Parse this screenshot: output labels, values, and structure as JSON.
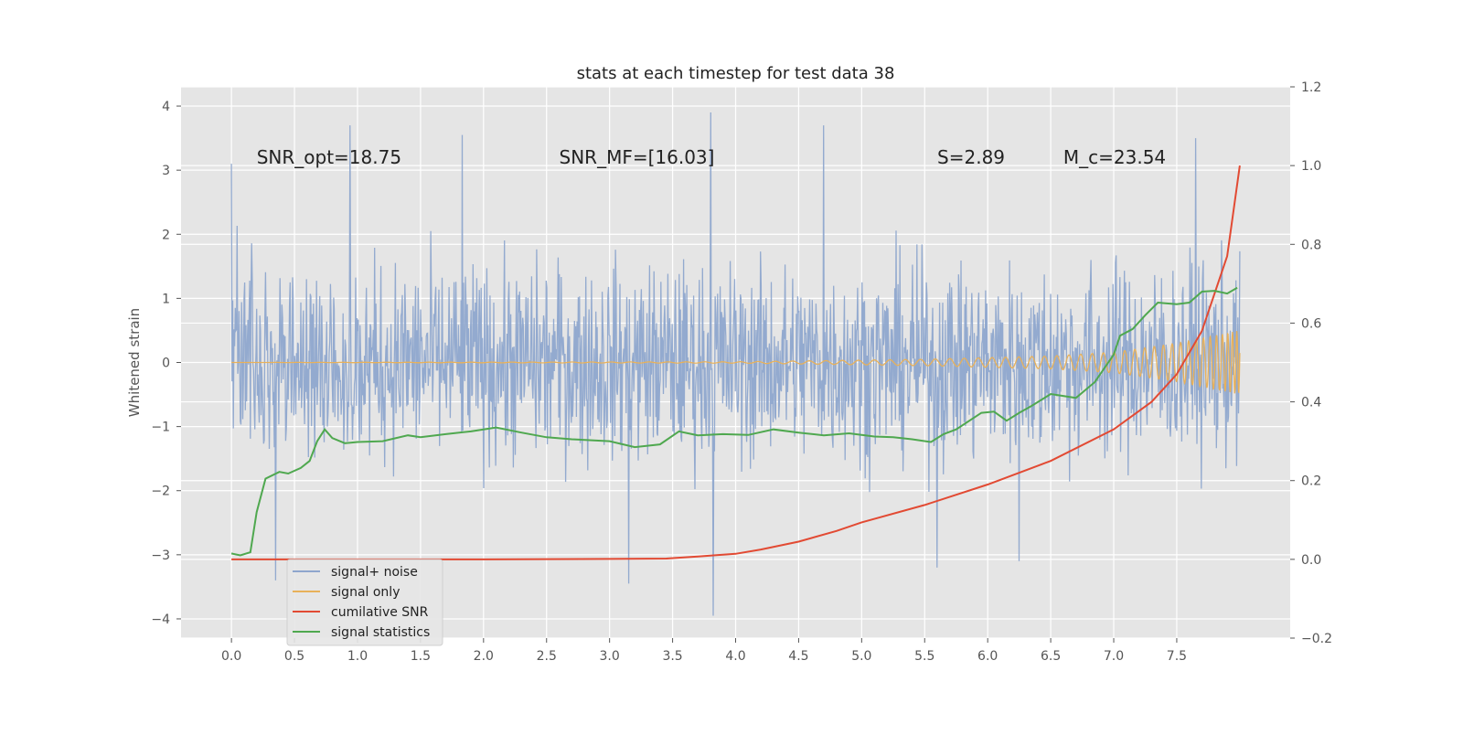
{
  "chart_data": {
    "type": "line",
    "title": "stats at each timestep for test data 38",
    "ylabel": "Whitened strain",
    "xlabel": "",
    "xlim": [
      -0.4,
      8.4
    ],
    "ylim": [
      -4.3,
      4.3
    ],
    "y2lim": [
      -0.2,
      1.2
    ],
    "grid": true,
    "legend_position": "lower-left",
    "x_ticks": [
      "0.0",
      "0.5",
      "1.0",
      "1.5",
      "2.0",
      "2.5",
      "3.0",
      "3.5",
      "4.0",
      "4.5",
      "5.0",
      "5.5",
      "6.0",
      "6.5",
      "7.0",
      "7.5"
    ],
    "y_ticks": [
      "4",
      "3",
      "2",
      "1",
      "0",
      "−1",
      "−2",
      "−3",
      "−4"
    ],
    "y2_ticks": [
      "1.2",
      "1.0",
      "0.8",
      "0.6",
      "0.4",
      "0.2",
      "0.0",
      "−0.2"
    ],
    "annotations": [
      {
        "text": "SNR_opt=18.75",
        "x": 0.2,
        "y": 3.1
      },
      {
        "text": "SNR_MF=[16.03]",
        "x": 2.6,
        "y": 3.1
      },
      {
        "text": "S=2.89",
        "x": 5.6,
        "y": 3.1
      },
      {
        "text": "M_c=23.54",
        "x": 6.6,
        "y": 3.1
      }
    ],
    "series": [
      {
        "name": "signal+ noise",
        "axis": "left",
        "color": "#8ea6cd",
        "x_range": [
          0.0,
          8.0
        ],
        "sample_count": 1600,
        "typical_min": -1.5,
        "typical_max": 1.5,
        "extremes": [
          {
            "x": 0.0,
            "y": 3.1
          },
          {
            "x": 0.35,
            "y": -3.4
          },
          {
            "x": 0.94,
            "y": 3.7
          },
          {
            "x": 1.83,
            "y": 3.55
          },
          {
            "x": 3.15,
            "y": -3.45
          },
          {
            "x": 3.8,
            "y": 3.9
          },
          {
            "x": 3.82,
            "y": -3.95
          },
          {
            "x": 4.7,
            "y": 3.7
          },
          {
            "x": 5.6,
            "y": -3.2
          },
          {
            "x": 6.25,
            "y": -3.1
          },
          {
            "x": 7.65,
            "y": 3.5
          }
        ]
      },
      {
        "name": "signal only",
        "axis": "left",
        "color": "#e8b15a",
        "x_range": [
          0.0,
          8.0
        ],
        "amplitude_envelope": [
          {
            "x": 0.0,
            "y": 0.0
          },
          {
            "x": 4.0,
            "y": 0.01
          },
          {
            "x": 5.5,
            "y": 0.05
          },
          {
            "x": 6.5,
            "y": 0.1
          },
          {
            "x": 7.0,
            "y": 0.16
          },
          {
            "x": 7.5,
            "y": 0.3
          },
          {
            "x": 8.0,
            "y": 0.5
          }
        ]
      },
      {
        "name": "cumilative SNR",
        "axis": "right",
        "color": "#e24a33",
        "x": [
          0.0,
          1.0,
          2.0,
          3.0,
          3.45,
          3.7,
          4.0,
          4.2,
          4.5,
          4.8,
          5.0,
          5.5,
          6.0,
          6.5,
          7.0,
          7.3,
          7.5,
          7.7,
          7.9,
          8.0
        ],
        "values": [
          0.0,
          0.0,
          0.0,
          0.001,
          0.002,
          0.007,
          0.014,
          0.025,
          0.045,
          0.072,
          0.094,
          0.138,
          0.19,
          0.25,
          0.33,
          0.4,
          0.47,
          0.58,
          0.77,
          1.0
        ]
      },
      {
        "name": "signal statistics",
        "axis": "right",
        "color": "#4fa84f",
        "x": [
          0.0,
          0.07,
          0.15,
          0.2,
          0.27,
          0.38,
          0.45,
          0.55,
          0.62,
          0.68,
          0.74,
          0.8,
          0.9,
          1.0,
          1.2,
          1.4,
          1.5,
          1.7,
          1.9,
          2.0,
          2.1,
          2.3,
          2.5,
          2.7,
          3.0,
          3.2,
          3.4,
          3.55,
          3.7,
          3.9,
          4.1,
          4.3,
          4.5,
          4.7,
          4.9,
          5.1,
          5.25,
          5.4,
          5.55,
          5.65,
          5.75,
          5.95,
          6.05,
          6.15,
          6.25,
          6.35,
          6.5,
          6.7,
          6.85,
          7.0,
          7.05,
          7.15,
          7.25,
          7.35,
          7.5,
          7.6,
          7.7,
          7.8,
          7.9,
          7.98
        ],
        "values": [
          0.015,
          0.01,
          0.018,
          0.12,
          0.205,
          0.222,
          0.218,
          0.232,
          0.25,
          0.3,
          0.33,
          0.308,
          0.295,
          0.298,
          0.3,
          0.315,
          0.31,
          0.318,
          0.325,
          0.33,
          0.335,
          0.322,
          0.31,
          0.305,
          0.3,
          0.285,
          0.292,
          0.325,
          0.315,
          0.318,
          0.316,
          0.33,
          0.322,
          0.315,
          0.32,
          0.312,
          0.31,
          0.305,
          0.298,
          0.318,
          0.33,
          0.372,
          0.375,
          0.352,
          0.372,
          0.39,
          0.42,
          0.41,
          0.45,
          0.52,
          0.568,
          0.585,
          0.62,
          0.652,
          0.648,
          0.652,
          0.68,
          0.682,
          0.675,
          0.69
        ]
      }
    ]
  }
}
